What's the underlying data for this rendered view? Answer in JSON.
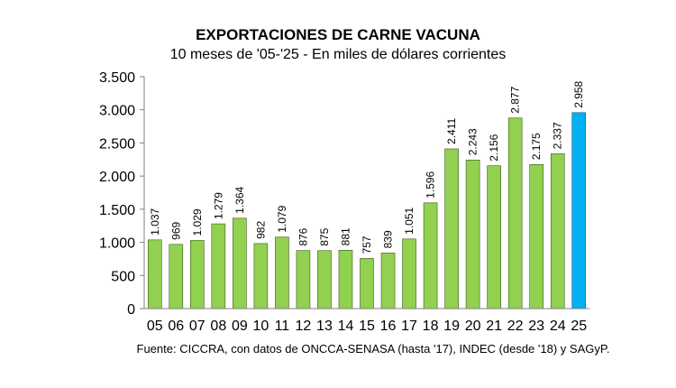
{
  "chart_data": {
    "type": "bar",
    "title": "EXPORTACIONES DE CARNE VACUNA",
    "subtitle": "10 meses de '05-'25 - En miles de dólares corrientes",
    "categories": [
      "05",
      "06",
      "07",
      "08",
      "09",
      "10",
      "11",
      "12",
      "13",
      "14",
      "15",
      "16",
      "17",
      "18",
      "19",
      "20",
      "21",
      "22",
      "23",
      "24",
      "25"
    ],
    "values": [
      1037,
      969,
      1029,
      1279,
      1364,
      982,
      1079,
      876,
      875,
      881,
      757,
      839,
      1051,
      1596,
      2411,
      2243,
      2156,
      2877,
      2175,
      2337,
      2958
    ],
    "value_labels": [
      "1.037",
      "969",
      "1.029",
      "1.279",
      "1.364",
      "982",
      "1.079",
      "876",
      "875",
      "881",
      "757",
      "839",
      "1.051",
      "1.596",
      "2.411",
      "2.243",
      "2.156",
      "2.877",
      "2.175",
      "2.337",
      "2.958"
    ],
    "ylim": [
      0,
      3500
    ],
    "yticks": [
      0,
      500,
      1000,
      1500,
      2000,
      2500,
      3000,
      3500
    ],
    "ytick_labels": [
      "0",
      "500",
      "1.000",
      "1.500",
      "2.000",
      "2.500",
      "3.000",
      "3.500"
    ],
    "xlabel": "",
    "ylabel": "",
    "grid": false,
    "colors": {
      "bar": "#92d050",
      "highlight": "#00b0f0",
      "bar_edge": "#3a5a1a",
      "highlight_edge": "#1f4e79",
      "axis": "#808080"
    },
    "highlight_index": 20
  },
  "source": "Fuente: CICCRA, con datos de ONCCA-SENASA (hasta '17), INDEC (desde '18) y SAGyP."
}
